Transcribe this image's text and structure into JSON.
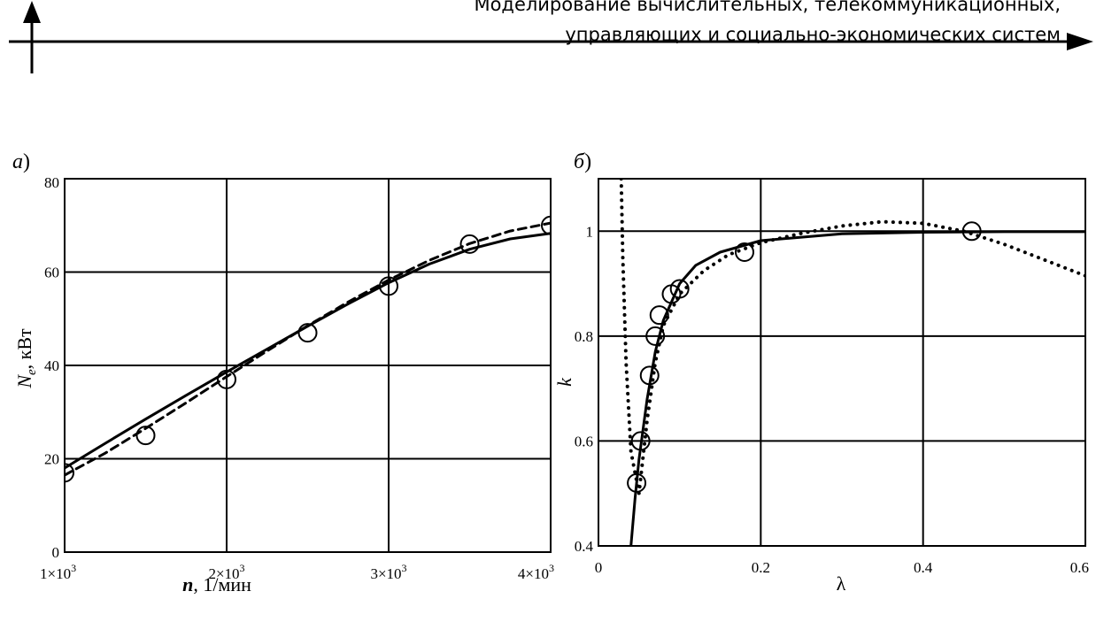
{
  "header": {
    "line1": "Моделирование вычислительных, телекоммуникационных,",
    "line2": "управляющих и социально-экономических систем"
  },
  "chart_data": [
    {
      "type": "line",
      "panel_label": "а",
      "xlabel": "n, 1/мин",
      "ylabel": "N_e, кВт",
      "xlim": [
        1000,
        4000
      ],
      "ylim": [
        0,
        80
      ],
      "x_ticks": [
        1000,
        2000,
        3000,
        4000
      ],
      "x_tick_labels": [
        "1×10^3",
        "2×10^3",
        "3×10^3",
        "4×10^3"
      ],
      "y_ticks": [
        0,
        20,
        40,
        60,
        80
      ],
      "y_tick_labels": [
        "0",
        "20",
        "40",
        "60",
        "80"
      ],
      "grid": true,
      "series": [
        {
          "style": "markers",
          "marker": "circle",
          "x": [
            1000,
            1500,
            2000,
            2500,
            3000,
            3500,
            4000
          ],
          "y": [
            17,
            25,
            37,
            47,
            57,
            66,
            70
          ]
        },
        {
          "style": "solid",
          "x": [
            1000,
            1250,
            1500,
            1750,
            2000,
            2250,
            2500,
            2750,
            3000,
            3250,
            3500,
            3750,
            4000
          ],
          "y": [
            18,
            23.3,
            28.5,
            33.6,
            38.6,
            43.5,
            48.4,
            53.2,
            57.7,
            61.7,
            64.9,
            67.1,
            68.3
          ]
        },
        {
          "style": "dashed",
          "x": [
            1000,
            1250,
            1500,
            1750,
            2000,
            2250,
            2500,
            2750,
            3000,
            3250,
            3500,
            3750,
            4000
          ],
          "y": [
            16.5,
            21.2,
            26.5,
            32,
            37.6,
            43.1,
            48.5,
            53.6,
            58.3,
            62.5,
            66.1,
            68.8,
            70.5
          ]
        }
      ]
    },
    {
      "type": "line",
      "panel_label": "б",
      "xlabel": "λ",
      "ylabel": "k",
      "xlim": [
        0,
        0.6
      ],
      "ylim": [
        0.4,
        1.1
      ],
      "x_ticks": [
        0,
        0.2,
        0.4,
        0.6
      ],
      "x_tick_labels": [
        "0",
        "0.2",
        "0.4",
        "0.6"
      ],
      "y_ticks": [
        0.4,
        0.6,
        0.8,
        1
      ],
      "y_tick_labels": [
        "0.4",
        "0.6",
        "0.8",
        "1"
      ],
      "grid": true,
      "series": [
        {
          "style": "markers",
          "marker": "circle",
          "x": [
            0.047,
            0.052,
            0.063,
            0.07,
            0.075,
            0.09,
            0.1,
            0.18,
            0.46
          ],
          "y": [
            0.52,
            0.6,
            0.725,
            0.8,
            0.84,
            0.88,
            0.89,
            0.96,
            1.0
          ]
        },
        {
          "style": "solid",
          "x": [
            0.04,
            0.045,
            0.05,
            0.06,
            0.07,
            0.08,
            0.1,
            0.12,
            0.15,
            0.2,
            0.3,
            0.4,
            0.5,
            0.6
          ],
          "y": [
            0.4,
            0.49,
            0.565,
            0.68,
            0.77,
            0.83,
            0.9,
            0.935,
            0.96,
            0.982,
            0.995,
            0.998,
            0.999,
            0.999
          ]
        },
        {
          "style": "dotted",
          "x": [
            0.028,
            0.03,
            0.034,
            0.04,
            0.05,
            0.06,
            0.07,
            0.08,
            0.1,
            0.13,
            0.16,
            0.2,
            0.25,
            0.3,
            0.35,
            0.4,
            0.45,
            0.5,
            0.55,
            0.6
          ],
          "y": [
            1.1,
            0.95,
            0.75,
            0.58,
            0.5,
            0.64,
            0.75,
            0.82,
            0.88,
            0.925,
            0.955,
            0.978,
            0.996,
            1.01,
            1.018,
            1.015,
            1.0,
            0.975,
            0.945,
            0.915
          ]
        }
      ]
    }
  ]
}
